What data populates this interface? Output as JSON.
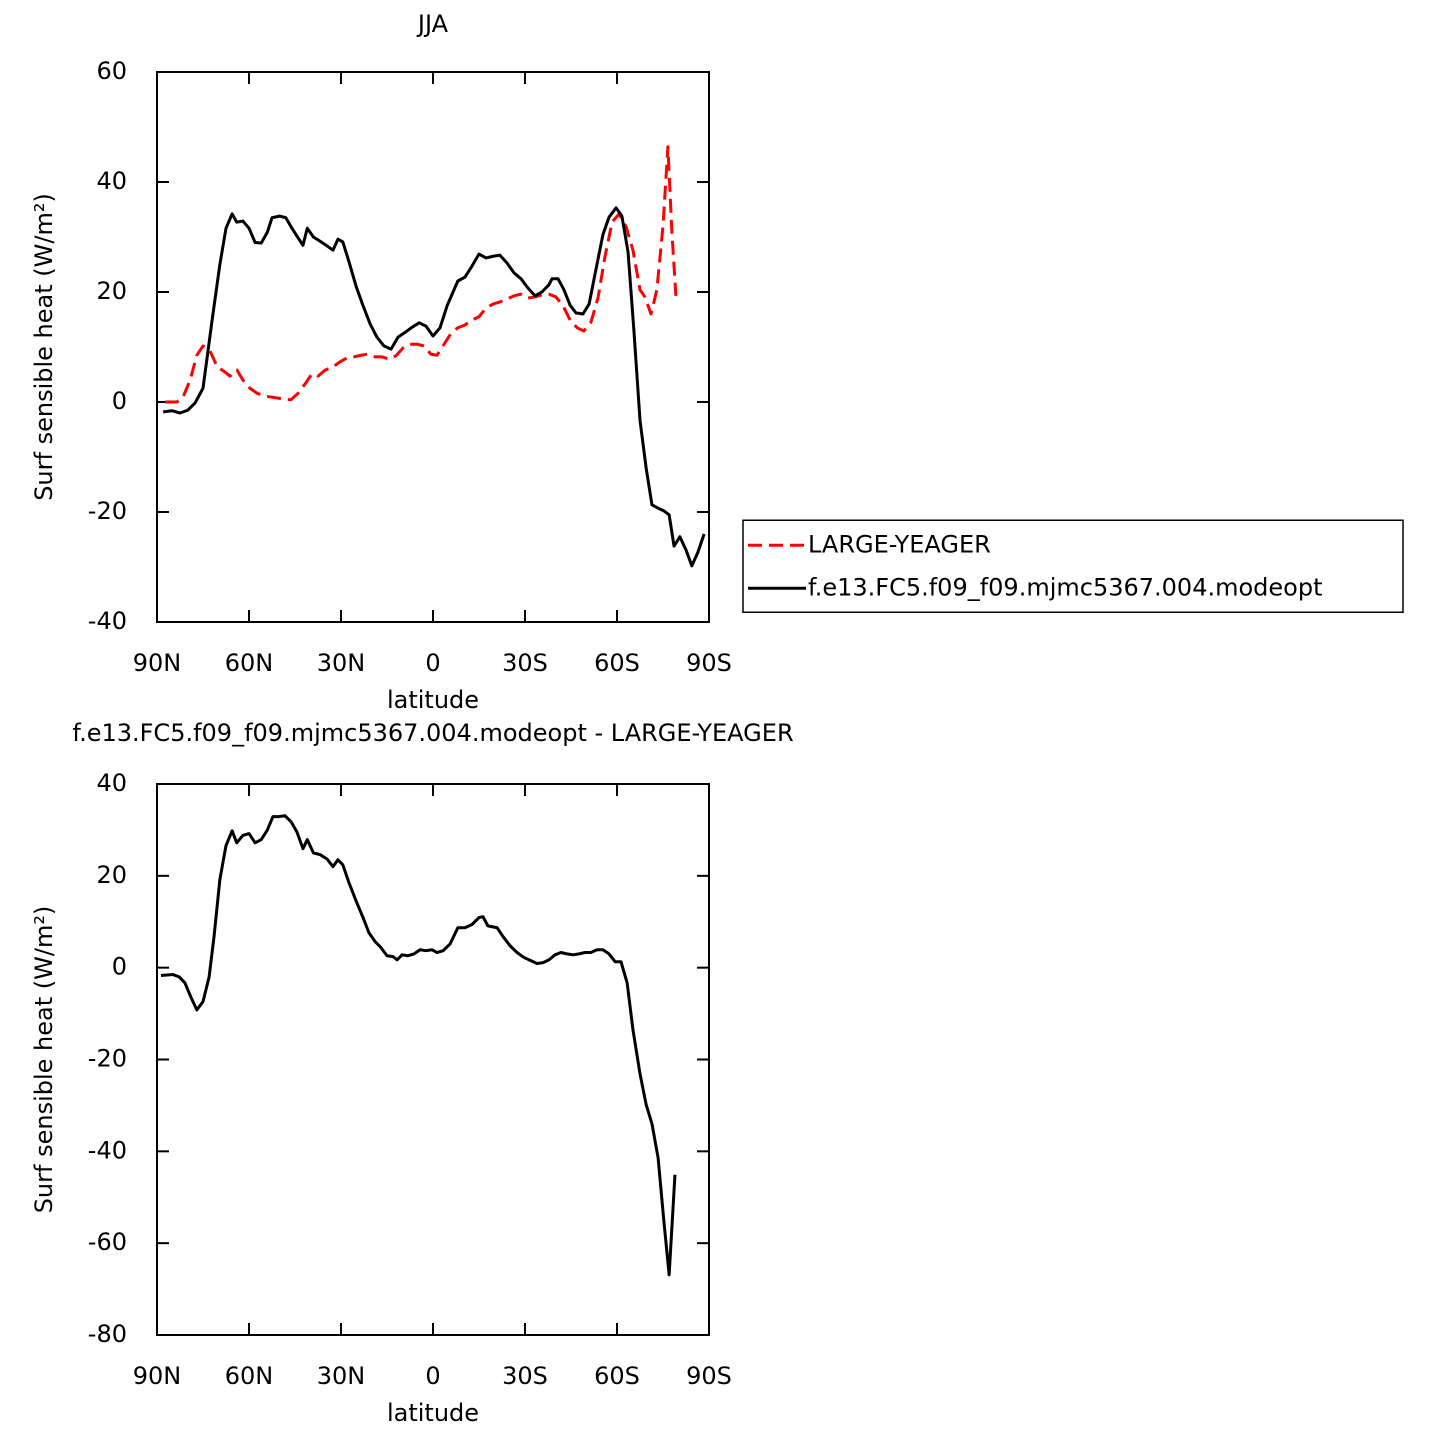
{
  "chart_data": [
    {
      "type": "line",
      "title": "JJA",
      "xlabel": "latitude",
      "ylabel": "Surf sensible heat (W/m²)",
      "xlim": [
        90,
        -90
      ],
      "xticks": [
        {
          "value": 90,
          "label": "90N"
        },
        {
          "value": 60,
          "label": "60N"
        },
        {
          "value": 30,
          "label": "30N"
        },
        0,
        {
          "value": -30,
          "label": "30S"
        },
        {
          "value": -60,
          "label": "60S"
        },
        {
          "value": -90,
          "label": "90S"
        }
      ],
      "ylim": [
        -40,
        60
      ],
      "yticks": [
        -40,
        -20,
        0,
        20,
        40,
        60
      ],
      "legend": "right",
      "series": [
        {
          "name": "LARGE-YEAGER",
          "color": "#ff0000",
          "dashed": true,
          "x": [
            87.4,
            83.5,
            81.5,
            79.2,
            77,
            75,
            72.7,
            70.4,
            68.2,
            66.2,
            63.9,
            62,
            59.7,
            57.4,
            55.1,
            52.8,
            50.5,
            48.3,
            46.3,
            44,
            41.7,
            39.5,
            37.5,
            35.2,
            32.6,
            30.3,
            28.1,
            25.8,
            23.5,
            21.2,
            18.9,
            16.6,
            14.4,
            12.1,
            9.8,
            7.5,
            5.2,
            2.9,
            0.7,
            -1.3,
            -3.6,
            -5.9,
            -8.1,
            -10.4,
            -12.7,
            -15,
            -17.3,
            -19.6,
            -21.8,
            -24.1,
            -26.4,
            -28.7,
            -31,
            -33.3,
            -35.5,
            -37.8,
            -40.1,
            -42.4,
            -44.7,
            -47,
            -49.2,
            -51.5,
            -53.8,
            -56.1,
            -58.4,
            -60.7,
            -63,
            -65.2,
            -67.5,
            -69.1,
            -71.1,
            -73,
            -75,
            -76.6,
            -77.9,
            -79.2
          ],
          "values": [
            0,
            0,
            0.9,
            4,
            8.5,
            10.2,
            9.3,
            6.4,
            5.6,
            4.7,
            5.8,
            4,
            2.5,
            1.6,
            1.1,
            0.9,
            0.7,
            0.5,
            0.4,
            1.6,
            3.3,
            5.1,
            4.7,
            5.8,
            6.4,
            7.3,
            8,
            8.2,
            8.5,
            8.7,
            8.2,
            8.2,
            7.8,
            8.4,
            9.8,
            10.5,
            10.5,
            10.2,
            8.7,
            8.5,
            10.5,
            12.5,
            13.5,
            14,
            14.9,
            15.5,
            17.1,
            17.8,
            18.2,
            18.7,
            19.3,
            19.6,
            18.9,
            19.1,
            19.5,
            19.6,
            19.1,
            17.5,
            14.9,
            13.5,
            12.9,
            14.5,
            18.9,
            26.5,
            32.7,
            34.2,
            31.8,
            27.6,
            20.4,
            19.1,
            16,
            20.4,
            32,
            46.4,
            30.9,
            19.3
          ]
        },
        {
          "name": "f.e13.FC5.f09_f09.mjmc5367.004.modeopt",
          "color": "#000000",
          "dashed": false,
          "x": [
            88,
            85,
            82.5,
            80,
            77.6,
            75,
            72,
            69.5,
            67.5,
            65.5,
            64,
            62,
            60,
            58,
            56,
            54,
            52.5,
            50,
            48,
            46,
            44.4,
            42.4,
            41,
            39,
            37,
            34.6,
            32.6,
            31,
            29.4,
            27.4,
            25,
            22.8,
            20.5,
            18.3,
            16,
            13.7,
            11.4,
            9,
            6.8,
            4.5,
            2.3,
            0,
            -2.3,
            -4.6,
            -8.1,
            -10.4,
            -12.7,
            -15,
            -17.3,
            -19.6,
            -21.8,
            -24.1,
            -26.4,
            -28.7,
            -31,
            -33.3,
            -35.5,
            -37.8,
            -38.8,
            -40.8,
            -42.7,
            -44.7,
            -46.6,
            -48.9,
            -50.9,
            -53.1,
            -55.4,
            -57.4,
            -59.7,
            -61.6,
            -63.6,
            -65.5,
            -67.5,
            -69.5,
            -71.4,
            -73.4,
            -75.3,
            -77,
            -78.6,
            -80.5,
            -82.5,
            -84.4,
            -86.4,
            -88.4
          ],
          "values": [
            -1.8,
            -1.6,
            -2,
            -1.5,
            -0.2,
            2.5,
            15,
            25,
            31.6,
            34.2,
            32.7,
            32.9,
            31.6,
            29,
            28.9,
            30.9,
            33.5,
            33.8,
            33.5,
            31.6,
            30.2,
            28.5,
            31.6,
            30,
            29.3,
            28.4,
            27.6,
            29.6,
            29.1,
            25.5,
            20.9,
            17.5,
            14.2,
            11.8,
            10.2,
            9.6,
            11.8,
            12.7,
            13.6,
            14.4,
            13.8,
            12,
            13.5,
            17.5,
            22,
            22.7,
            24.7,
            26.9,
            26.2,
            26.5,
            26.7,
            25.3,
            23.5,
            22.4,
            20.7,
            19.3,
            20,
            21.3,
            22.4,
            22.4,
            20.4,
            17.6,
            16.2,
            16,
            17.8,
            24,
            30.4,
            33.6,
            35.3,
            33.8,
            27.3,
            13.1,
            -3.3,
            -12,
            -18.7,
            -19.3,
            -19.8,
            -20.5,
            -26.2,
            -24.5,
            -26.9,
            -29.8,
            -27.3,
            -24
          ]
        }
      ]
    },
    {
      "type": "line",
      "title": "f.e13.FC5.f09_f09.mjmc5367.004.modeopt - LARGE-YEAGER",
      "xlabel": "latitude",
      "ylabel": "Surf sensible heat (W/m²)",
      "xlim": [
        90,
        -90
      ],
      "xticks": [
        {
          "value": 90,
          "label": "90N"
        },
        {
          "value": 60,
          "label": "60N"
        },
        {
          "value": 30,
          "label": "30N"
        },
        0,
        {
          "value": -30,
          "label": "30S"
        },
        {
          "value": -60,
          "label": "60S"
        },
        {
          "value": -90,
          "label": "90S"
        }
      ],
      "ylim": [
        -80,
        40
      ],
      "yticks": [
        -80,
        -60,
        -40,
        -20,
        0,
        20,
        40
      ],
      "series": [
        {
          "color": "#000000",
          "dashed": false,
          "x": [
            88.7,
            84.8,
            82.8,
            80.9,
            78.9,
            77,
            75,
            73,
            71.4,
            69.5,
            67.5,
            65.5,
            64,
            62,
            60,
            58,
            56,
            54,
            52.2,
            50.2,
            48.3,
            46.3,
            44.4,
            42.4,
            41,
            39,
            36.8,
            34.6,
            32.6,
            31,
            29.4,
            27.4,
            25,
            22.8,
            20.9,
            18.9,
            17,
            15,
            13,
            11.7,
            10.1,
            8.2,
            6.2,
            4.2,
            2.3,
            0.3,
            -1.3,
            -3.3,
            -5.6,
            -8.1,
            -10.4,
            -12.7,
            -15,
            -16.3,
            -17.9,
            -20.9,
            -22.8,
            -25.1,
            -27.4,
            -29.7,
            -32,
            -33.9,
            -35.9,
            -37.8,
            -39.8,
            -41.7,
            -43.7,
            -45.7,
            -47.6,
            -49.6,
            -51.5,
            -53.5,
            -55.4,
            -57.4,
            -59.4,
            -61.3,
            -63.3,
            -65.2,
            -67.5,
            -69.5,
            -71.4,
            -73.4,
            -75.3,
            -77,
            -78.9
          ],
          "values": [
            -1.7,
            -1.5,
            -2,
            -3.3,
            -6.5,
            -9.2,
            -7.4,
            -2,
            6.8,
            19.2,
            26.6,
            29.8,
            27.2,
            28.8,
            29.2,
            27.2,
            27.9,
            30,
            32.9,
            32.9,
            33.1,
            31.8,
            29.6,
            25.9,
            27.9,
            25,
            24.6,
            23.7,
            22,
            23.5,
            22.4,
            18.5,
            14.4,
            10.9,
            7.6,
            5.7,
            4.4,
            2.6,
            2.4,
            1.7,
            2.8,
            2.6,
            3,
            3.9,
            3.7,
            3.9,
            3.3,
            3.7,
            5.2,
            8.7,
            8.7,
            9.4,
            10.9,
            11.1,
            9.1,
            8.7,
            6.8,
            4.8,
            3.3,
            2.2,
            1.5,
            0.9,
            1.1,
            1.7,
            2.8,
            3.3,
            3,
            2.8,
            3,
            3.3,
            3.3,
            3.9,
            3.9,
            3,
            1.3,
            1.3,
            -3.3,
            -13.5,
            -23.1,
            -29.8,
            -34,
            -41.4,
            -55.3,
            -66.9,
            -45.1
          ]
        }
      ]
    }
  ]
}
